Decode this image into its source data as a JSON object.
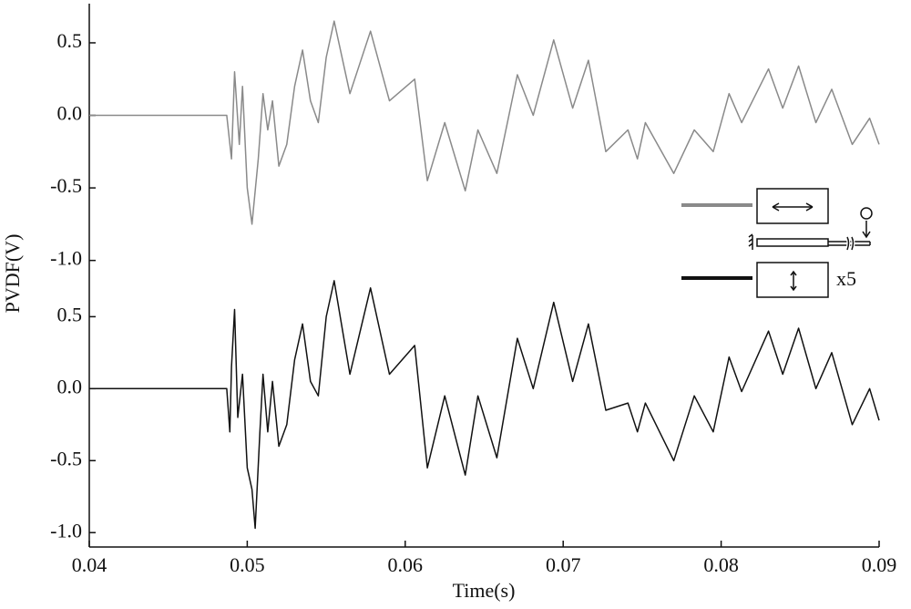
{
  "chart_data": [
    {
      "type": "line",
      "ylabel": "PVDF(V)",
      "xlim": [
        0.04,
        0.09
      ],
      "ylim": [
        -1.09,
        0.77
      ],
      "yticks": [
        {
          "value": 0.5,
          "label": "0.5"
        },
        {
          "value": 0,
          "label": "0.0"
        },
        {
          "value": -0.5,
          "label": "-0.5"
        },
        {
          "value": -1,
          "label": "-1.0"
        }
      ],
      "series": [
        {
          "color": "#8a8a8a",
          "x": [
            0.04,
            0.0487,
            0.049,
            0.0492,
            0.0495,
            0.0497,
            0.05,
            0.0503,
            0.0507,
            0.051,
            0.0513,
            0.0516,
            0.052,
            0.0525,
            0.053,
            0.0535,
            0.054,
            0.0545,
            0.055,
            0.0555,
            0.0565,
            0.0578,
            0.059,
            0.0606,
            0.0614,
            0.0625,
            0.0638,
            0.0646,
            0.0658,
            0.0671,
            0.0681,
            0.0694,
            0.0706,
            0.0716,
            0.0727,
            0.0741,
            0.0747,
            0.0752,
            0.077,
            0.0783,
            0.0795,
            0.0805,
            0.0813,
            0.083,
            0.0839,
            0.0849,
            0.086,
            0.087,
            0.0883,
            0.0894,
            0.09
          ],
          "values": [
            0,
            0,
            -0.3,
            0.3,
            -0.2,
            0.2,
            -0.5,
            -0.75,
            -0.3,
            0.15,
            -0.1,
            0.1,
            -0.35,
            -0.2,
            0.2,
            0.45,
            0.1,
            -0.05,
            0.4,
            0.65,
            0.15,
            0.58,
            0.1,
            0.25,
            -0.45,
            -0.05,
            -0.52,
            -0.1,
            -0.4,
            0.28,
            0,
            0.52,
            0.05,
            0.38,
            -0.25,
            -0.1,
            -0.3,
            -0.05,
            -0.4,
            -0.1,
            -0.25,
            0.15,
            -0.05,
            0.32,
            0.05,
            0.34,
            -0.05,
            0.18,
            -0.2,
            -0.02,
            -0.2
          ]
        }
      ]
    },
    {
      "type": "line",
      "xlabel": "Time(s)",
      "annotation": "x5",
      "xlim": [
        0.04,
        0.09
      ],
      "ylim": [
        -1.1,
        0.8
      ],
      "xticks": [
        0.04,
        0.05,
        0.06,
        0.07,
        0.08,
        0.09
      ],
      "yticks": [
        {
          "value": 0.5,
          "label": "0.5"
        },
        {
          "value": 0,
          "label": "0.0"
        },
        {
          "value": -0.5,
          "label": "-0.5"
        },
        {
          "value": -1,
          "label": "-1.0"
        }
      ],
      "series": [
        {
          "color": "#111111",
          "x": [
            0.04,
            0.0487,
            0.0489,
            0.049,
            0.0492,
            0.0494,
            0.0497,
            0.05,
            0.0503,
            0.0505,
            0.0508,
            0.051,
            0.0513,
            0.0516,
            0.052,
            0.0525,
            0.053,
            0.0535,
            0.054,
            0.0545,
            0.055,
            0.0555,
            0.0565,
            0.0578,
            0.059,
            0.0606,
            0.0614,
            0.0625,
            0.0638,
            0.0646,
            0.0658,
            0.0671,
            0.0681,
            0.0694,
            0.0706,
            0.0716,
            0.0727,
            0.0741,
            0.0747,
            0.0752,
            0.077,
            0.0783,
            0.0795,
            0.0805,
            0.0813,
            0.083,
            0.0839,
            0.0849,
            0.086,
            0.087,
            0.0883,
            0.0894,
            0.09
          ],
          "values": [
            0,
            0,
            -0.3,
            0.15,
            0.55,
            -0.2,
            0.1,
            -0.55,
            -0.7,
            -0.97,
            -0.3,
            0.1,
            -0.3,
            0.05,
            -0.4,
            -0.25,
            0.2,
            0.45,
            0.05,
            -0.05,
            0.5,
            0.75,
            0.1,
            0.7,
            0.1,
            0.3,
            -0.55,
            -0.05,
            -0.6,
            -0.05,
            -0.48,
            0.35,
            0,
            0.6,
            0.05,
            0.45,
            -0.15,
            -0.1,
            -0.3,
            -0.1,
            -0.5,
            -0.05,
            -0.3,
            0.22,
            -0.02,
            0.4,
            0.1,
            0.42,
            0,
            0.25,
            -0.25,
            0,
            -0.22
          ]
        }
      ]
    }
  ]
}
